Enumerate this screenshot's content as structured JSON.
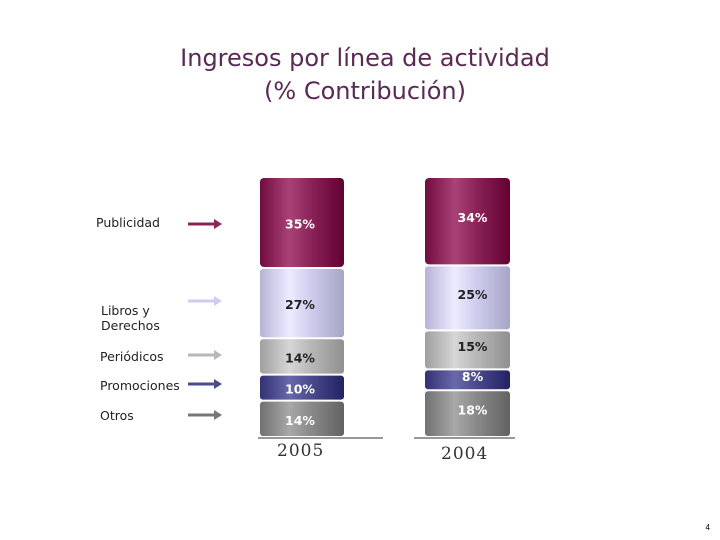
{
  "page": {
    "number": "4"
  },
  "chart_data": {
    "type": "bar",
    "stacked": true,
    "title": [
      "Ingresos por línea de actividad",
      "(% Contribución)"
    ],
    "categories": [
      "2005",
      "2004"
    ],
    "series": [
      {
        "name": "Publicidad",
        "values": [
          35,
          34
        ],
        "labels": [
          "35%",
          "34%"
        ],
        "color": "#8b2459"
      },
      {
        "name": "Libros y Derechos",
        "values": [
          27,
          25
        ],
        "labels": [
          "27%",
          "25%"
        ],
        "color": "#cfcdee"
      },
      {
        "name": "Periódicos",
        "values": [
          14,
          15
        ],
        "labels": [
          "14%",
          "15%"
        ],
        "color": "#b8b8b8"
      },
      {
        "name": "Promociones",
        "values": [
          10,
          8
        ],
        "labels": [
          "10%",
          "8%"
        ],
        "color": "#4b4a8c"
      },
      {
        "name": "Otros",
        "values": [
          14,
          18
        ],
        "labels": [
          "14%",
          "18%"
        ],
        "color": "#8a8a8a"
      }
    ],
    "legend_placement": "left",
    "legend_labels": [
      "Publicidad",
      "Libros y\nDerechos",
      "Periódicos",
      "Promociones",
      "Otros"
    ],
    "grid": false
  }
}
